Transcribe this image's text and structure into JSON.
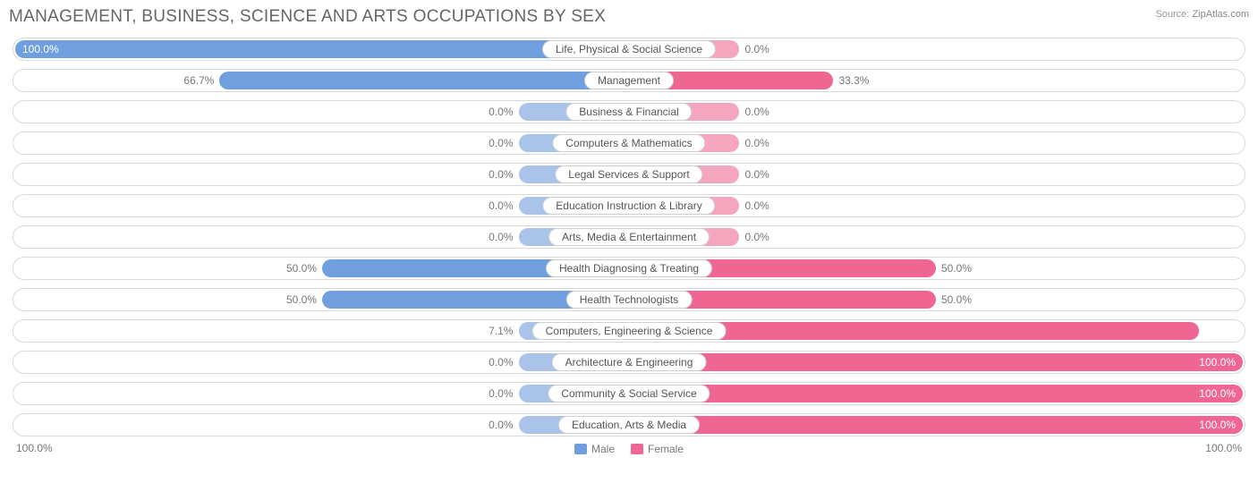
{
  "title": "MANAGEMENT, BUSINESS, SCIENCE AND ARTS OCCUPATIONS BY SEX",
  "source_label": "Source:",
  "source_value": "ZipAtlas.com",
  "axis_left": "100.0%",
  "axis_right": "100.0%",
  "legend": {
    "male": "Male",
    "female": "Female"
  },
  "colors": {
    "male_fill": "#6f9fde",
    "female_fill": "#ee6691",
    "male_faded": "#a9c3e9",
    "female_faded": "#f4a6bf",
    "title_color": "#666666",
    "border_color": "#d9d9d9",
    "text_color": "#777777"
  },
  "min_bar_pct": 18,
  "rows": [
    {
      "category": "Life, Physical & Social Science",
      "male": 100.0,
      "female": 0.0
    },
    {
      "category": "Management",
      "male": 66.7,
      "female": 33.3
    },
    {
      "category": "Business & Financial",
      "male": 0.0,
      "female": 0.0
    },
    {
      "category": "Computers & Mathematics",
      "male": 0.0,
      "female": 0.0
    },
    {
      "category": "Legal Services & Support",
      "male": 0.0,
      "female": 0.0
    },
    {
      "category": "Education Instruction & Library",
      "male": 0.0,
      "female": 0.0
    },
    {
      "category": "Arts, Media & Entertainment",
      "male": 0.0,
      "female": 0.0
    },
    {
      "category": "Health Diagnosing & Treating",
      "male": 50.0,
      "female": 50.0
    },
    {
      "category": "Health Technologists",
      "male": 50.0,
      "female": 50.0
    },
    {
      "category": "Computers, Engineering & Science",
      "male": 7.1,
      "female": 92.9
    },
    {
      "category": "Architecture & Engineering",
      "male": 0.0,
      "female": 100.0
    },
    {
      "category": "Community & Social Service",
      "male": 0.0,
      "female": 100.0
    },
    {
      "category": "Education, Arts & Media",
      "male": 0.0,
      "female": 100.0
    }
  ]
}
